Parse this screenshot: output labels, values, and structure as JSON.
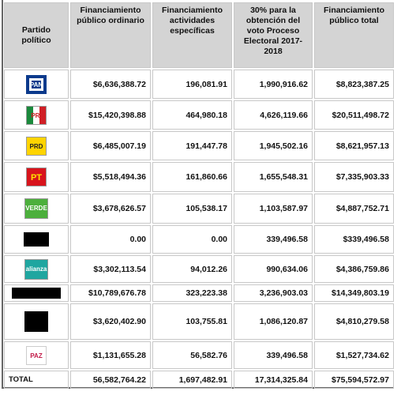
{
  "table": {
    "header": [
      "Partido político",
      "Financiamiento público ordinario",
      "Financiamiento actividades específicas",
      "30% para la obtención del voto Proceso Electoral 2017-2018",
      "Financiamiento público total"
    ],
    "rows": [
      {
        "logo": "PAN",
        "values": [
          "$6,636,388.72",
          "196,081.91",
          "1,990,916.62",
          "$8,823,387.25"
        ]
      },
      {
        "logo": "PRI",
        "values": [
          "$15,420,398.88",
          "464,980.18",
          "4,626,119.66",
          "$20,511,498.72"
        ]
      },
      {
        "logo": "PRD",
        "values": [
          "$6,485,007.19",
          "191,447.78",
          "1,945,502.16",
          "$8,621,957.13"
        ]
      },
      {
        "logo": "PT",
        "values": [
          "$5,518,494.36",
          "161,860.66",
          "1,655,548.31",
          "$7,335,903.33"
        ]
      },
      {
        "logo": "VERDE",
        "values": [
          "$3,678,626.57",
          "105,538.17",
          "1,103,587.97",
          "$4,887,752.71"
        ]
      },
      {
        "values": [
          "0.00",
          "0.00",
          "339,496.58",
          "$339,496.58"
        ]
      },
      {
        "logo": "alianza",
        "values": [
          "$3,302,113.54",
          "94,012.26",
          "990,634.06",
          "$4,386,759.86"
        ]
      },
      {
        "values": [
          "$10,789,676.78",
          "323,223.38",
          "3,236,903.03",
          "$14,349,803.19"
        ]
      },
      {
        "values": [
          "$3,620,402.90",
          "103,755.81",
          "1,086,120.87",
          "$4,810,279.58"
        ]
      },
      {
        "logo": "PAZ",
        "values": [
          "$1,131,655.28",
          "56,582.76",
          "339,496.58",
          "$1,527,734.62"
        ]
      }
    ],
    "total": {
      "label": "TOTAL",
      "values": [
        "56,582,764.22",
        "1,697,482.91",
        "17,314,325.84",
        "$75,594,572.97"
      ]
    }
  }
}
